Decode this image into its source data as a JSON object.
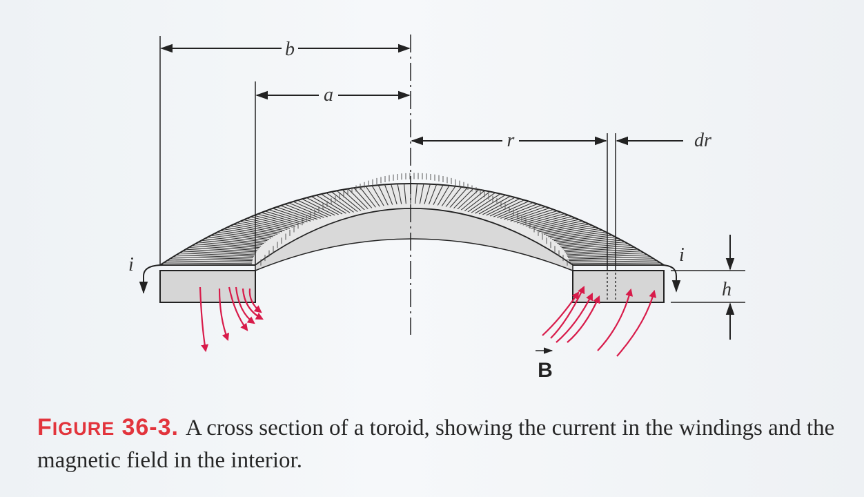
{
  "figure": {
    "labels": {
      "b": "b",
      "a": "a",
      "r": "r",
      "dr": "dr",
      "i_left": "i",
      "i_right": "i",
      "h": "h",
      "B": "B"
    },
    "colors": {
      "field_lines": "#d81b4a",
      "ink": "#222222",
      "caption_label": "#e2343c"
    }
  },
  "caption": {
    "label_first": "F",
    "label_rest": "IGURE",
    "label_number": "36-3.",
    "text": "A cross section of a toroid, showing the current in the windings and the magnetic field in the interior."
  }
}
